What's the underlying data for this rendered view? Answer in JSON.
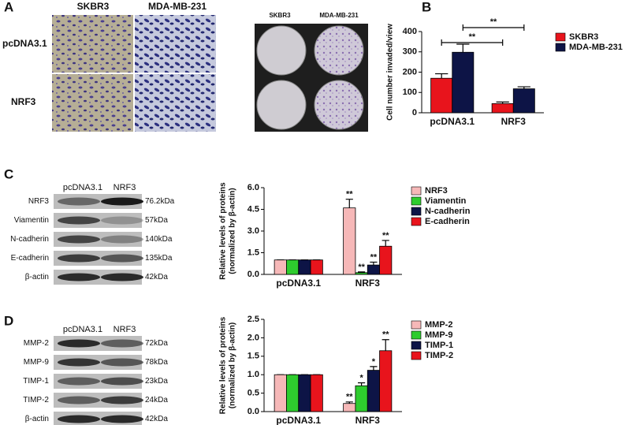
{
  "panel_letters": [
    "A",
    "B",
    "C",
    "D"
  ],
  "transwell": {
    "columns": [
      "SKBR3",
      "MDA-MB-231"
    ],
    "rows": [
      "pcDNA3.1",
      "NRF3"
    ]
  },
  "dishes": {
    "columns": [
      "SKBR3",
      "MDA-MB-231"
    ]
  },
  "blot_c": {
    "lanes": [
      "pcDNA3.1",
      "NRF3"
    ],
    "bands": [
      {
        "protein": "NRF3",
        "size": "76.2kDa"
      },
      {
        "protein": "Viamentin",
        "size": "57kDa"
      },
      {
        "protein": "N-cadherin",
        "size": "140kDa"
      },
      {
        "protein": "E-cadherin",
        "size": "135kDa"
      },
      {
        "protein": "β-actin",
        "size": "42kDa"
      }
    ]
  },
  "blot_d": {
    "lanes": [
      "pcDNA3.1",
      "NRF3"
    ],
    "bands": [
      {
        "protein": "MMP-2",
        "size": "72kDa"
      },
      {
        "protein": "MMP-9",
        "size": "78kDa"
      },
      {
        "protein": "TIMP-1",
        "size": "23kDa"
      },
      {
        "protein": "TIMP-2",
        "size": "24kDa"
      },
      {
        "protein": "β-actin",
        "size": "42kDa"
      }
    ]
  },
  "chart_data": [
    {
      "type": "bar",
      "ylabel": [
        "Cell number invaded/view"
      ],
      "categories": [
        "pcDNA3.1",
        "NRF3"
      ],
      "ylim": [
        0,
        400
      ],
      "yticks": [
        0,
        100,
        200,
        300,
        400
      ],
      "series": [
        {
          "name": "SKBR3",
          "color": "#e8141c",
          "values": [
            170,
            45
          ],
          "errors": [
            22,
            8
          ]
        },
        {
          "name": "MDA-MB-231",
          "color": "#0d1446",
          "values": [
            298,
            118
          ],
          "errors": [
            40,
            10
          ]
        }
      ],
      "annotations": [
        "**",
        "**"
      ]
    },
    {
      "type": "bar",
      "ylabel": [
        "Relative levels of proteins",
        "(normalized by β-actin)"
      ],
      "categories": [
        "pcDNA3.1",
        "NRF3"
      ],
      "ylim": [
        0,
        6
      ],
      "yticks": [
        {
          "value": 0,
          "label": "0.0"
        },
        1.5,
        {
          "value": 3,
          "label": "3.0"
        },
        4.5,
        {
          "value": 6,
          "label": "6.0"
        }
      ],
      "series": [
        {
          "name": "NRF3",
          "color": "#f6b8b8",
          "values": [
            1,
            4.6
          ],
          "errors": [
            0,
            0.6
          ],
          "significance": [
            null,
            "**"
          ]
        },
        {
          "name": "Viamentin",
          "color": "#2ecc2e",
          "values": [
            1,
            0.12
          ],
          "errors": [
            0,
            0.05
          ],
          "significance": [
            null,
            "**"
          ]
        },
        {
          "name": "N-cadherin",
          "color": "#0d1446",
          "values": [
            1,
            0.65
          ],
          "errors": [
            0,
            0.2
          ],
          "significance": [
            null,
            "**"
          ]
        },
        {
          "name": "E-cadherin",
          "color": "#e8141c",
          "values": [
            1,
            1.95
          ],
          "errors": [
            0,
            0.4
          ],
          "significance": [
            null,
            "**"
          ]
        }
      ]
    },
    {
      "type": "bar",
      "ylabel": [
        "Relative levels of proteins",
        "(normalized by β-actin)"
      ],
      "categories": [
        "pcDNA3.1",
        "NRF3"
      ],
      "ylim": [
        0,
        2.5
      ],
      "yticks": [
        {
          "value": 0,
          "label": "0.0"
        },
        0.5,
        {
          "value": 1,
          "label": "1.0"
        },
        1.5,
        {
          "value": 2,
          "label": "2.0"
        },
        2.5
      ],
      "series": [
        {
          "name": "MMP-2",
          "color": "#f6b8b8",
          "values": [
            1,
            0.22
          ],
          "errors": [
            0,
            0.04
          ],
          "significance": [
            null,
            "**"
          ]
        },
        {
          "name": "MMP-9",
          "color": "#2ecc2e",
          "values": [
            1,
            0.7
          ],
          "errors": [
            0,
            0.08
          ],
          "significance": [
            null,
            "*"
          ]
        },
        {
          "name": "TIMP-1",
          "color": "#0d1446",
          "values": [
            1,
            1.12
          ],
          "errors": [
            0,
            0.1
          ],
          "significance": [
            null,
            "*"
          ]
        },
        {
          "name": "TIMP-2",
          "color": "#e8141c",
          "values": [
            1,
            1.65
          ],
          "errors": [
            0,
            0.3
          ],
          "significance": [
            null,
            "**"
          ]
        }
      ]
    }
  ]
}
